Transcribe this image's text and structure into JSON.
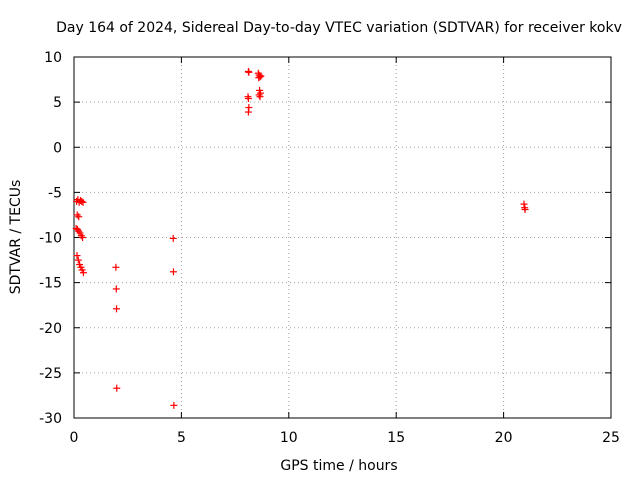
{
  "chart_data": {
    "type": "scatter",
    "title": "Day 164 of 2024, Sidereal Day-to-day VTEC variation (SDTVAR) for receiver kokv",
    "xlabel": "GPS time / hours",
    "ylabel": "SDTVAR / TECUs",
    "xlim": [
      0,
      25
    ],
    "ylim": [
      -30,
      10
    ],
    "xticks": [
      0,
      5,
      10,
      15,
      20,
      25
    ],
    "yticks": [
      -30,
      -25,
      -20,
      -15,
      -10,
      -5,
      0,
      5,
      10
    ],
    "grid": true,
    "marker": "+",
    "color": "#ff0000",
    "series": [
      {
        "name": "SDTVAR",
        "x": [
          0.12,
          0.18,
          0.24,
          0.3,
          0.36,
          0.42,
          0.15,
          0.22,
          0.1,
          0.16,
          0.22,
          0.28,
          0.34,
          0.4,
          0.14,
          0.2,
          0.26,
          0.32,
          0.38,
          0.44,
          1.95,
          1.97,
          1.98,
          1.99,
          4.62,
          4.63,
          4.65,
          8.12,
          8.14,
          8.1,
          8.12,
          8.14,
          8.12,
          8.58,
          8.62,
          8.66,
          8.7,
          8.6,
          8.64,
          8.68,
          8.62,
          8.66,
          20.95,
          20.98,
          21.0
        ],
        "y": [
          -6.0,
          -5.8,
          -6.1,
          -5.9,
          -6.0,
          -6.1,
          -7.5,
          -7.7,
          -9.0,
          -9.1,
          -9.3,
          -9.5,
          -9.8,
          -10.0,
          -12.0,
          -12.5,
          -13.0,
          -13.3,
          -13.6,
          -13.9,
          -13.3,
          -15.7,
          -17.9,
          -26.7,
          -10.1,
          -13.8,
          -28.6,
          8.4,
          8.3,
          5.6,
          5.4,
          4.4,
          3.9,
          8.2,
          8.0,
          7.8,
          7.9,
          7.7,
          6.3,
          6.0,
          5.8,
          5.6,
          -6.3,
          -6.7,
          -6.9
        ]
      }
    ]
  }
}
